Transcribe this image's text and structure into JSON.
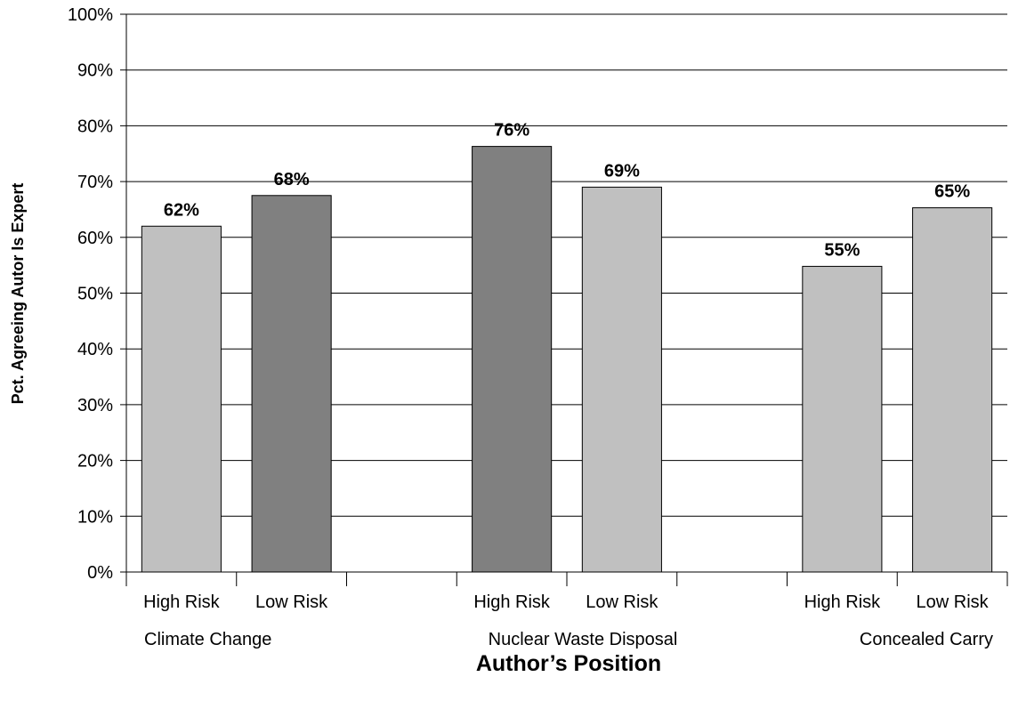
{
  "chart_data": {
    "type": "bar",
    "title": "",
    "xlabel": "Author’s Position",
    "ylabel": "Pct. Agreeing Autor Is Expert",
    "ylim": [
      0,
      100
    ],
    "y_ticks": [
      "0%",
      "10%",
      "20%",
      "30%",
      "40%",
      "50%",
      "60%",
      "70%",
      "80%",
      "90%",
      "100%"
    ],
    "grid": true,
    "legend": "none",
    "colors": {
      "light": "#c0c0c0",
      "dark": "#808080",
      "grid": "#000000"
    },
    "groups": [
      {
        "label": "Climate Change",
        "bars": [
          {
            "category": "High Risk",
            "value": 62,
            "label": "62%",
            "color": "light"
          },
          {
            "category": "Low Risk",
            "value": 67.5,
            "label": "68%",
            "color": "dark"
          }
        ]
      },
      {
        "label": "Nuclear Waste Disposal",
        "bars": [
          {
            "category": "High Risk",
            "value": 76.3,
            "label": "76%",
            "color": "dark"
          },
          {
            "category": "Low Risk",
            "value": 69,
            "label": "69%",
            "color": "light"
          }
        ]
      },
      {
        "label": "Concealed Carry",
        "bars": [
          {
            "category": "High Risk",
            "value": 54.8,
            "label": "55%",
            "color": "light"
          },
          {
            "category": "Low Risk",
            "value": 65.3,
            "label": "65%",
            "color": "light"
          }
        ]
      }
    ]
  }
}
